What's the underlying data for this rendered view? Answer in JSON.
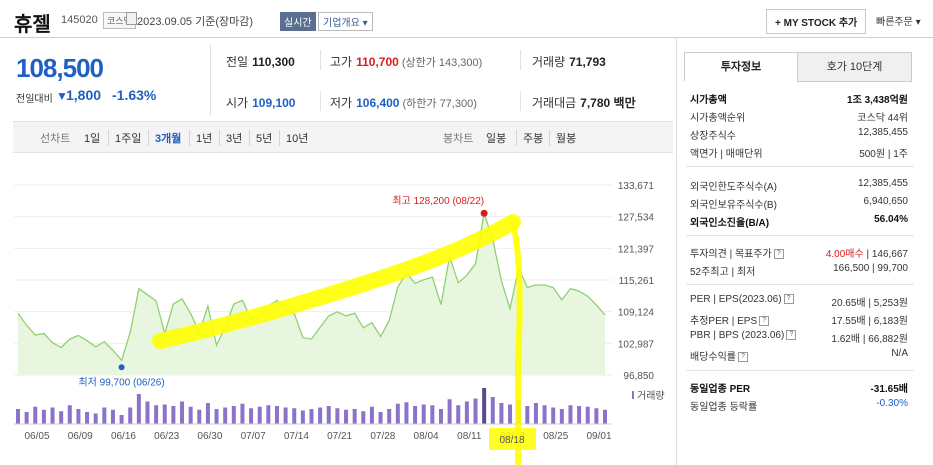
{
  "header": {
    "name": "휴젤",
    "code": "145020",
    "market_badge": "코스닥",
    "date_text": "2023.09.05 기준(장마감)",
    "live_badge": "실시간",
    "info_badge": "기업개요 ▾",
    "mystock_button": "+ MY STOCK 추가",
    "quick_order": "빠른주문 ▾"
  },
  "price": {
    "current": "108,500",
    "compare_label": "전일대비",
    "change_arrow": "▼",
    "change": "1,800",
    "change_pct": "-1.63%"
  },
  "quotes": {
    "prev_label": "전일",
    "prev": "110,300",
    "high_label": "고가",
    "high": "110,700",
    "upper_limit": "(상한가 143,300)",
    "volume_label": "거래량",
    "volume": "71,793",
    "open_label": "시가",
    "open": "109,100",
    "low_label": "저가",
    "low": "106,400",
    "lower_limit": "(하한가 77,300)",
    "amount_label": "거래대금",
    "amount": "7,780 백만"
  },
  "period_bar": {
    "line_label": "선차트",
    "line_periods": [
      "1일",
      "1주일",
      "3개월",
      "1년",
      "3년",
      "5년",
      "10년"
    ],
    "selected": "3개월",
    "candle_label": "봉차트",
    "candle_periods": [
      "일봉",
      "주봉",
      "월봉"
    ]
  },
  "chart_data": {
    "type": "line",
    "y_ticks": [
      "133,671",
      "127,534",
      "121,397",
      "115,261",
      "109,124",
      "102,987",
      "96,850"
    ],
    "ylim": [
      96850,
      133671
    ],
    "x_ticks": [
      "06/05",
      "06/09",
      "06/16",
      "06/23",
      "06/30",
      "07/07",
      "07/14",
      "07/21",
      "07/28",
      "08/04",
      "08/11",
      "08/18",
      "08/25",
      "09/01"
    ],
    "series": [
      {
        "values": [
          108800,
          106500,
          104600,
          104900,
          103100,
          102200,
          103800,
          104500,
          103500,
          102300,
          103300,
          101600,
          99700,
          105100,
          113600,
          112400,
          111200,
          104900,
          110600,
          111600,
          108800,
          105100,
          110200,
          102600,
          106100,
          110600,
          111300,
          107600,
          108300,
          110200,
          111300,
          109600,
          108800,
          104100,
          103800,
          106100,
          108300,
          109100,
          108300,
          108800,
          106000,
          107000,
          104300,
          107400,
          113900,
          116600,
          114600,
          115300,
          115800,
          110500,
          119800,
          114700,
          116200,
          118400,
          128200,
          123100,
          115100,
          109700,
          117600,
          113800,
          114300,
          114300,
          113800,
          111400,
          113600,
          113100,
          112100,
          110400,
          108500
        ]
      }
    ],
    "volume_label": "거래량",
    "volume": [
      20,
      16,
      23,
      19,
      22,
      17,
      25,
      20,
      16,
      14,
      22,
      19,
      12,
      22,
      40,
      30,
      25,
      26,
      24,
      30,
      23,
      19,
      28,
      20,
      22,
      24,
      27,
      21,
      23,
      25,
      24,
      22,
      21,
      18,
      20,
      22,
      24,
      21,
      19,
      20,
      17,
      23,
      16,
      20,
      27,
      29,
      24,
      26,
      25,
      20,
      33,
      25,
      30,
      34,
      48,
      36,
      28,
      26,
      32,
      24,
      28,
      25,
      22,
      20,
      25,
      24,
      23,
      21,
      19
    ],
    "max_annotation": "최고 128,200 (08/22)",
    "min_annotation": "최저 99,700 (06/26)"
  },
  "side_panel": {
    "tabs": [
      "투자정보",
      "호가 10단계"
    ],
    "market_cap_label": "시가총액",
    "market_cap": "1조 3,438억원",
    "cap_rank_label": "시가총액순위",
    "cap_rank": "코스닥 44위",
    "shares_label": "상장주식수",
    "shares": "12,385,455",
    "par_label": "액면가 | 매매단위",
    "par": "500원 | 1주",
    "foreign_limit_label": "외국인한도주식수(A)",
    "foreign_limit": "12,385,455",
    "foreign_hold_label": "외국인보유주식수(B)",
    "foreign_hold": "6,940,650",
    "foreign_ratio_label": "외국인소진율(B/A)",
    "foreign_ratio": "56.04%",
    "opinion_label": "투자의견 | 목표주가",
    "opinion": "4.00매수",
    "target": "146,667",
    "range52_label": "52주최고 | 최저",
    "range52": "166,500 | 99,700",
    "per_label": "PER | EPS(2023.06)",
    "per": "20.65배 | 5,253원",
    "est_per_label": "추정PER | EPS",
    "est_per": "17.55배 | 6,183원",
    "pbr_label": "PBR | BPS (2023.06)",
    "pbr": "1.62배 | 66,882원",
    "div_label": "배당수익률",
    "div": "N/A",
    "ind_per_label": "동일업종 PER",
    "ind_per": "-31.65배",
    "ind_rate_label": "동일업종 등락률",
    "ind_rate": "-0.30%"
  },
  "colors": {
    "accent_blue": "#1f5fc6",
    "up_red": "#d81e1e",
    "line_green": "#8fd16e",
    "area_green": "#e8f6df",
    "volume_purple": "#8a73c9",
    "highlight_yellow": "#ffff00"
  }
}
